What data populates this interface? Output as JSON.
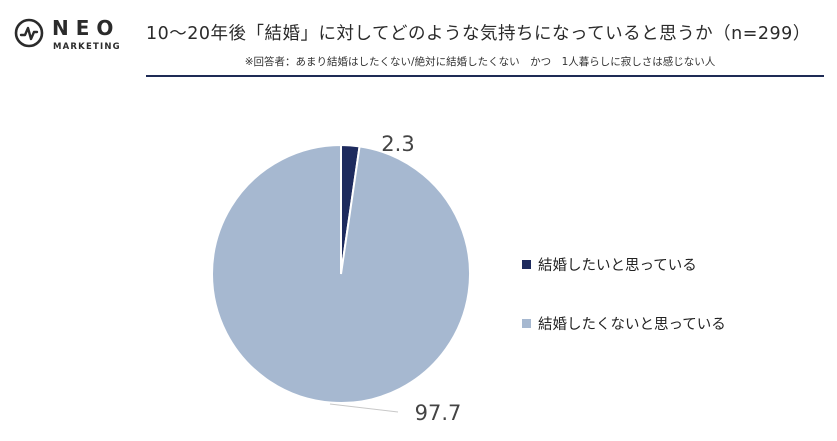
{
  "header": {
    "logo_text": "NEO",
    "logo_subtext": "MARKETING",
    "title": "10～20年後「結婚」に対してどのような気持ちになっていると思うか（n=299）",
    "subtitle": "※回答者：あまり結婚はしたくない/絶対に結婚したくない　かつ　1人暮らしに寂しさは感じない人"
  },
  "chart_data": {
    "type": "pie",
    "slices": [
      {
        "label": "結婚したいと思っている",
        "value": 2.3,
        "color": "#1e2b5e"
      },
      {
        "label": "結婚したくないと思っている",
        "value": 97.7,
        "color": "#a6b8d0"
      }
    ],
    "data_labels": [
      "2.3",
      "97.7"
    ],
    "legend_position": "right",
    "start_angle": "top",
    "direction": "clockwise"
  },
  "legend": {
    "items": [
      {
        "label": "結婚したいと思っている",
        "color": "#1e2b5e"
      },
      {
        "label": "結婚したくないと思っている",
        "color": "#a6b8d0"
      }
    ]
  }
}
